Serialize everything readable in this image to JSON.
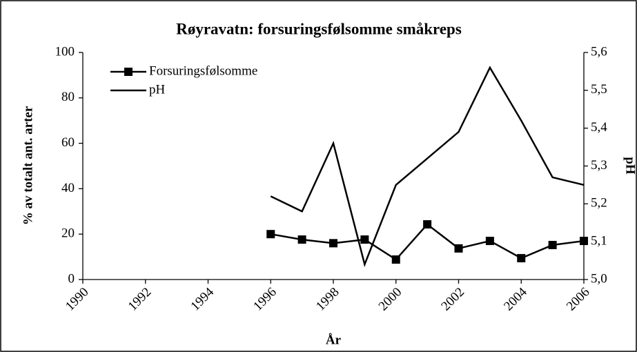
{
  "chart_data": {
    "type": "line",
    "title": "Røyravatn: forsuringsfølsomme småkreps",
    "x_label": "År",
    "y_label": "% av totalt ant. arter",
    "y2_label": "pH",
    "x": [
      1996,
      1997,
      1998,
      1999,
      2000,
      2001,
      2002,
      2003,
      2004,
      2005,
      2006
    ],
    "series": [
      {
        "name": "Forsuringsfølsomme",
        "color": "#000000",
        "marker": "square",
        "values": [
          20,
          17.6,
          16,
          17.6,
          8.8,
          24.3,
          13.7,
          17,
          9.4,
          15.2,
          17
        ]
      },
      {
        "name": "pH",
        "color": "#000000",
        "axis": "y2",
        "values": [
          5.22,
          5.18,
          5.36,
          5.04,
          5.25,
          5.32,
          5.39,
          5.56,
          5.42,
          5.27,
          5.25
        ]
      }
    ],
    "xlim": [
      1990,
      2006
    ],
    "xticks": [
      1990,
      1992,
      1994,
      1996,
      1998,
      2000,
      2002,
      2004,
      2006
    ],
    "ylim": [
      0,
      100
    ],
    "yticks": [
      0,
      20,
      40,
      60,
      80,
      100
    ],
    "y2lim": [
      5.0,
      5.6
    ],
    "y2ticks": [
      {
        "value": 5.0,
        "label": "5,0"
      },
      {
        "value": 5.1,
        "label": "5,1"
      },
      {
        "value": 5.2,
        "label": "5,2"
      },
      {
        "value": 5.3,
        "label": "5,3"
      },
      {
        "value": 5.4,
        "label": "5,4"
      },
      {
        "value": 5.5,
        "label": "5,5"
      },
      {
        "value": 5.6,
        "label": "5,6"
      }
    ],
    "grid": false,
    "legend": "upper left"
  }
}
